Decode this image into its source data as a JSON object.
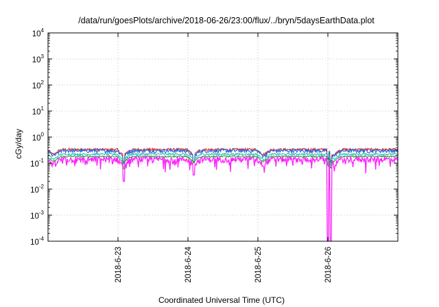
{
  "chart_data": {
    "type": "line",
    "title": "/data/run/goesPlots/archive/2018-06-26/23:00/flux/../bryn/5daysEarthData.plot",
    "xlabel": "Coordinated Universal Time (UTC)",
    "ylabel": "cGy/day",
    "y_scale": "log",
    "ylim": [
      0.0001,
      10000
    ],
    "y_ticks": [
      {
        "base": "10",
        "exp": "-4",
        "value": 0.0001
      },
      {
        "base": "10",
        "exp": "-3",
        "value": 0.001
      },
      {
        "base": "10",
        "exp": "-2",
        "value": 0.01
      },
      {
        "base": "10",
        "exp": "-1",
        "value": 0.1
      },
      {
        "base": "10",
        "exp": "0",
        "value": 1
      },
      {
        "base": "10",
        "exp": "1",
        "value": 10
      },
      {
        "base": "10",
        "exp": "2",
        "value": 100
      },
      {
        "base": "10",
        "exp": "3",
        "value": 1000
      },
      {
        "base": "10",
        "exp": "4",
        "value": 10000
      }
    ],
    "xlim": [
      "2018-06-22 00:00",
      "2018-06-27 00:00"
    ],
    "x_ticks": [
      {
        "label": "2018-6-23",
        "value": "2018-06-23 00:00"
      },
      {
        "label": "2018-6-24",
        "value": "2018-06-24 00:00"
      },
      {
        "label": "2018-6-25",
        "value": "2018-06-25 00:00"
      },
      {
        "label": "2018-6-26",
        "value": "2018-06-26 00:00"
      }
    ],
    "grid": true,
    "series": [
      {
        "color": "#e8261d",
        "level": 0.33,
        "variability": 0.12
      },
      {
        "color": "#2b68d8",
        "level": 0.3,
        "variability": 0.18
      },
      {
        "color": "#22c0c0",
        "level": 0.22,
        "variability": 0.08
      },
      {
        "color": "#2e9f34",
        "level": 0.18,
        "variability": 0.07
      },
      {
        "color": "#ff22ff",
        "level": 0.14,
        "variability": 0.25
      }
    ],
    "dips": [
      {
        "time": "2018-06-23 02:00",
        "min": 0.02
      },
      {
        "time": "2018-06-24 02:00",
        "min": 0.035
      },
      {
        "time": "2018-06-26 00:00",
        "min": 0.0001
      },
      {
        "time": "2018-06-26 01:00",
        "min": 0.0001
      }
    ]
  }
}
